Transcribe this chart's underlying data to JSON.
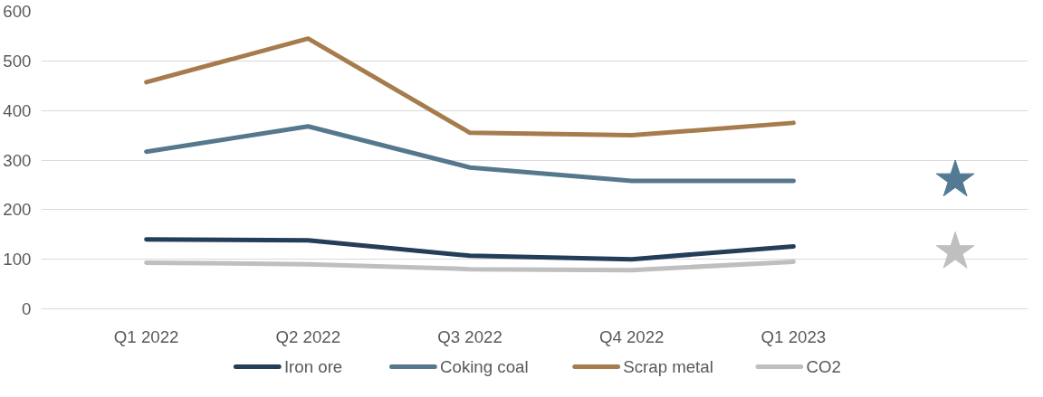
{
  "chart_data": {
    "type": "line",
    "categories": [
      "Q1 2022",
      "Q2 2022",
      "Q3 2022",
      "Q4 2022",
      "Q1 2023",
      null
    ],
    "ylim": [
      0,
      600
    ],
    "yticks": [
      0,
      100,
      200,
      300,
      400,
      500,
      600
    ],
    "grid": "y",
    "legend": "bottom",
    "line_style": "solid",
    "marker": "none",
    "series": [
      {
        "name": "Iron ore",
        "color": "#243d58",
        "values": [
          140,
          138,
          107,
          100,
          126,
          null
        ]
      },
      {
        "name": "Coking coal",
        "color": "#56788c",
        "values": [
          317,
          368,
          285,
          258,
          258,
          null
        ]
      },
      {
        "name": "Scrap metal",
        "color": "#a67c4e",
        "values": [
          457,
          545,
          355,
          350,
          375,
          null
        ]
      },
      {
        "name": "CO2",
        "color": "#bfbfbf",
        "values": [
          93,
          90,
          80,
          78,
          95,
          null
        ]
      },
      {
        "type": "scatter",
        "marker": "star",
        "color": "#527a93",
        "values": [
          null,
          null,
          null,
          null,
          null,
          260
        ]
      },
      {
        "type": "scatter",
        "marker": "star",
        "color": "#bfbfbf",
        "values": [
          null,
          null,
          null,
          null,
          null,
          115
        ]
      }
    ]
  }
}
